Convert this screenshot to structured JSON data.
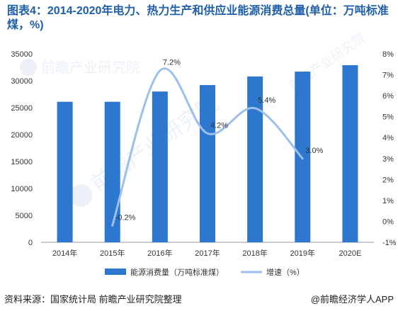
{
  "title": "图表4：2014-2020年电力、热力生产和供应业能源消费总量(单位：万吨标准煤，%)",
  "source": "资料来源：国家统计局 前瞻产业研究院整理",
  "brand": "@前瞻经济学人APP",
  "watermark_text": "前瞻产业研究院",
  "colors": {
    "bar": "#2e77cf",
    "line": "#9dbfea",
    "axis": "#999999",
    "text": "#333333"
  },
  "chart_data": {
    "type": "bar",
    "categories": [
      "2014年",
      "2015年",
      "2016年",
      "2017年",
      "2018年",
      "2019年",
      "2020E"
    ],
    "series": [
      {
        "name": "能源消费量（万吨标准煤）",
        "type": "bar",
        "axis": "left",
        "values": [
          26100,
          26100,
          28000,
          29200,
          30800,
          31700,
          32900
        ]
      },
      {
        "name": "增速（%）",
        "type": "line",
        "axis": "right",
        "values": [
          null,
          -0.2,
          7.2,
          4.2,
          5.4,
          3.0,
          null
        ],
        "labels": [
          "",
          "-0.2%",
          "7.2%",
          "4.2%",
          "5.4%",
          "3.0%",
          ""
        ]
      }
    ],
    "yleft": {
      "min": 0,
      "max": 35000,
      "ticks": [
        "0",
        "5000",
        "10000",
        "15000",
        "20000",
        "25000",
        "30000",
        "35000"
      ]
    },
    "yright": {
      "min": -1,
      "max": 8,
      "ticks": [
        "-1%",
        "0%",
        "1%",
        "2%",
        "3%",
        "4%",
        "5%",
        "6%",
        "7%",
        "8%"
      ]
    },
    "legend_position": "bottom",
    "grid": false
  }
}
